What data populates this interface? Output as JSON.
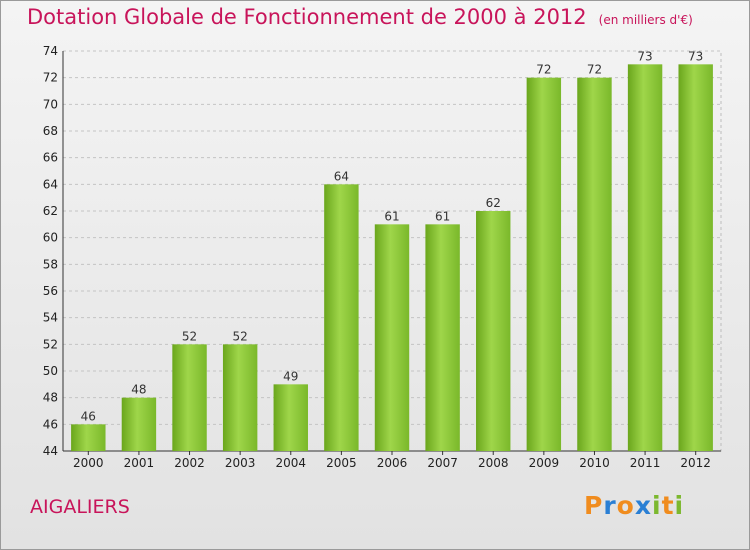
{
  "chart_data": {
    "type": "bar",
    "title": "Dotation Globale de Fonctionnement de 2000 à 2012",
    "subtitle": "(en milliers d'€)",
    "categories": [
      "2000",
      "2001",
      "2002",
      "2003",
      "2004",
      "2005",
      "2006",
      "2007",
      "2008",
      "2009",
      "2010",
      "2011",
      "2012"
    ],
    "values": [
      46,
      48,
      52,
      52,
      49,
      64,
      61,
      61,
      62,
      72,
      72,
      73,
      73
    ],
    "ylim": [
      44,
      74
    ],
    "yticks": [
      44,
      46,
      48,
      50,
      52,
      54,
      56,
      58,
      60,
      62,
      64,
      66,
      68,
      70,
      72,
      74
    ],
    "grid": true,
    "bar_color": "#7fbf2a"
  },
  "commune": "AIGALIERS",
  "logo": {
    "letters": [
      "P",
      "r",
      "o",
      "x",
      "i",
      "t",
      "i"
    ],
    "colors": [
      "#f08c1e",
      "#2a7fd4",
      "#f08c1e",
      "#2a7fd4",
      "#7cb82f",
      "#f08c1e",
      "#7cb82f"
    ]
  }
}
